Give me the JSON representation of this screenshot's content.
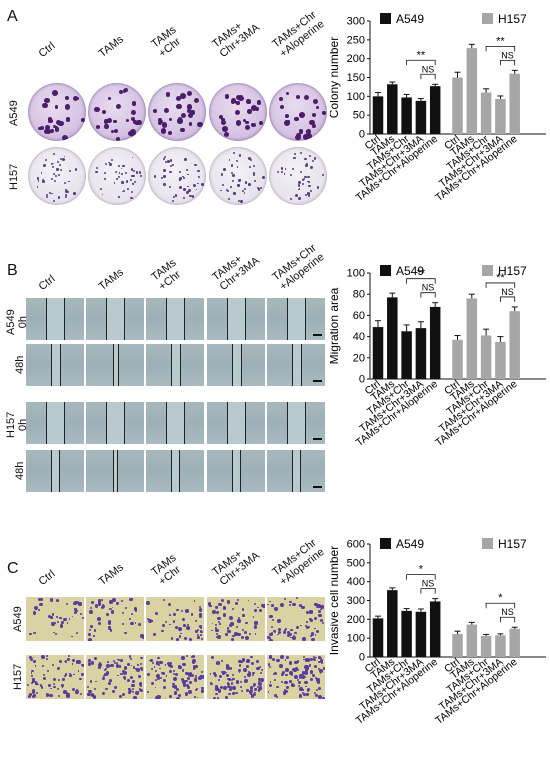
{
  "panels": [
    {
      "letter": "A",
      "col_labels": [
        "Ctrl",
        "TAMs",
        "TAMs\n+Chr",
        "TAMs+\nChr+3MA",
        "TAMs+Chr\n+Aloperine"
      ],
      "row_labels": [
        "A549",
        "H157"
      ]
    },
    {
      "letter": "B",
      "col_labels": [
        "Ctrl",
        "TAMs",
        "TAMs\n+Chr",
        "TAMs+\nChr+3MA",
        "TAMs+Chr\n+Aloperine"
      ],
      "row_labels": [
        "A549\n0h",
        "48h",
        "H157\n0h",
        "48h"
      ]
    },
    {
      "letter": "C",
      "col_labels": [
        "Ctrl",
        "TAMs",
        "TAMs\n+Chr",
        "TAMs+\nChr+3MA",
        "TAMs+Chr\n+Aloperine"
      ],
      "row_labels": [
        "A549",
        "H157"
      ]
    }
  ],
  "colors": {
    "a549": "#111111",
    "h157": "#a6a6a6",
    "error": "#111111"
  },
  "chart_data": [
    {
      "type": "bar",
      "panel": "A",
      "ylabel": "Colony number",
      "ylim": [
        0,
        300
      ],
      "yticks": [
        0,
        50,
        100,
        150,
        200,
        250,
        300
      ],
      "categories": [
        "Ctrl",
        "TAMs",
        "TAMs+Chr",
        "TAMs+Chr+3MA",
        "TAMs+Chr+Aloperine"
      ],
      "series": [
        {
          "name": "A549",
          "values": [
            100,
            132,
            97,
            88,
            127
          ],
          "errors": [
            10,
            6,
            8,
            6,
            5
          ]
        },
        {
          "name": "H157",
          "values": [
            150,
            228,
            110,
            93,
            160
          ],
          "errors": [
            14,
            10,
            10,
            8,
            9
          ]
        }
      ],
      "legend": [
        "A549",
        "H157"
      ],
      "annotations": [
        "NS",
        "**",
        "NS",
        "**"
      ]
    },
    {
      "type": "bar",
      "panel": "B",
      "ylabel": "Migration area",
      "ylim": [
        0,
        100
      ],
      "yticks": [
        0,
        20,
        40,
        60,
        80,
        100
      ],
      "categories": [
        "Ctrl",
        "TAMs",
        "TAMs+Chr",
        "TAMs+Chr+3MA",
        "TAMs+Chr+Aloperine"
      ],
      "series": [
        {
          "name": "A549",
          "values": [
            49,
            77,
            45,
            48,
            68
          ],
          "errors": [
            6,
            4,
            6,
            6,
            4
          ]
        },
        {
          "name": "H157",
          "values": [
            37,
            76,
            41,
            35,
            64
          ],
          "errors": [
            4,
            4,
            6,
            5,
            4
          ]
        }
      ],
      "legend": [
        "A549",
        "H157"
      ],
      "annotations": [
        "NS",
        "**",
        "NS",
        "**"
      ]
    },
    {
      "type": "bar",
      "panel": "C",
      "ylabel": "Invasive cell number",
      "ylim": [
        0,
        600
      ],
      "yticks": [
        0,
        100,
        200,
        300,
        400,
        500,
        600
      ],
      "categories": [
        "Ctrl",
        "TAMs",
        "TAMs+Chr",
        "TAMs+Chr+3MA",
        "TAMs+Chr+Aloperine"
      ],
      "series": [
        {
          "name": "A549",
          "values": [
            205,
            355,
            245,
            240,
            295
          ],
          "errors": [
            12,
            12,
            12,
            15,
            15
          ]
        },
        {
          "name": "H157",
          "values": [
            122,
            172,
            112,
            115,
            150
          ],
          "errors": [
            15,
            12,
            8,
            8,
            8
          ]
        }
      ],
      "legend": [
        "A549",
        "H157"
      ],
      "annotations": [
        "NS",
        "*",
        "NS",
        "*"
      ]
    }
  ]
}
